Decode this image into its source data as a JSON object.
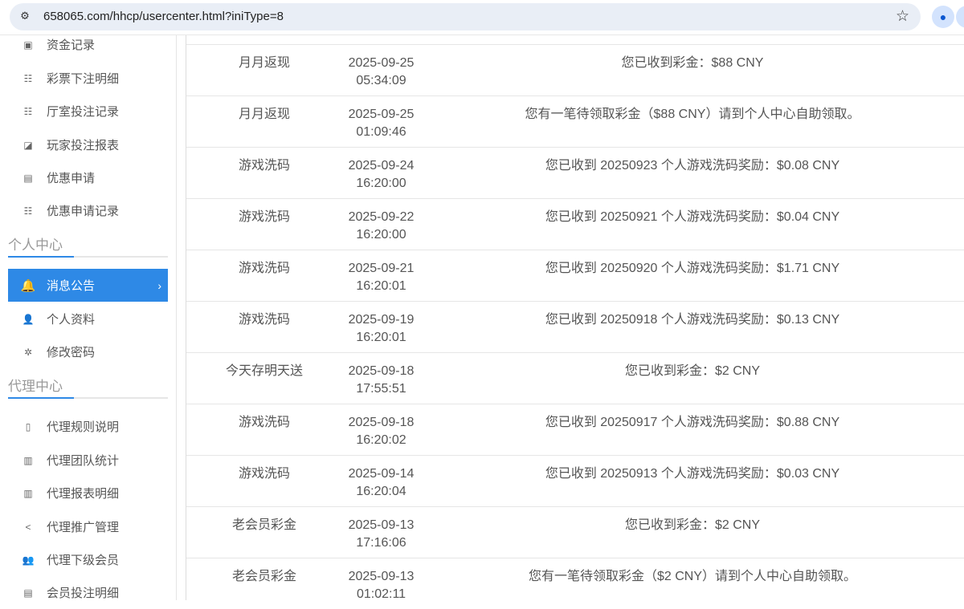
{
  "browser": {
    "url": "658065.com/hhcp/usercenter.html?iniType=8"
  },
  "sidebar": {
    "items_top": [
      {
        "label": "资金记录",
        "icon": "wallet-icon"
      },
      {
        "label": "彩票下注明细",
        "icon": "list-icon"
      },
      {
        "label": "厅室投注记录",
        "icon": "list-icon"
      },
      {
        "label": "玩家投注报表",
        "icon": "chart-icon"
      },
      {
        "label": "优惠申请",
        "icon": "gift-icon"
      },
      {
        "label": "优惠申请记录",
        "icon": "list-icon"
      }
    ],
    "section_personal": "个人中心",
    "items_personal": [
      {
        "label": "消息公告",
        "icon": "bell-icon",
        "active": true
      },
      {
        "label": "个人资料",
        "icon": "user-icon"
      },
      {
        "label": "修改密码",
        "icon": "gear-icon"
      }
    ],
    "section_agent": "代理中心",
    "items_agent": [
      {
        "label": "代理规则说明",
        "icon": "file-icon"
      },
      {
        "label": "代理团队统计",
        "icon": "book-icon"
      },
      {
        "label": "代理报表明细",
        "icon": "book-icon"
      },
      {
        "label": "代理推广管理",
        "icon": "share-icon"
      },
      {
        "label": "代理下级会员",
        "icon": "users-icon"
      },
      {
        "label": "会员投注明细",
        "icon": "document-icon"
      }
    ]
  },
  "messages": [
    {
      "type": "月月返现",
      "date": "2025-09-25",
      "time": "05:34:09",
      "content": "您已收到彩金：$88 CNY"
    },
    {
      "type": "月月返现",
      "date": "2025-09-25",
      "time": "01:09:46",
      "content": "您有一笔待领取彩金（$88 CNY）请到个人中心自助领取。"
    },
    {
      "type": "游戏洗码",
      "date": "2025-09-24",
      "time": "16:20:00",
      "content": "您已收到 20250923 个人游戏洗码奖励：$0.08 CNY"
    },
    {
      "type": "游戏洗码",
      "date": "2025-09-22",
      "time": "16:20:00",
      "content": "您已收到 20250921 个人游戏洗码奖励：$0.04 CNY"
    },
    {
      "type": "游戏洗码",
      "date": "2025-09-21",
      "time": "16:20:01",
      "content": "您已收到 20250920 个人游戏洗码奖励：$1.71 CNY"
    },
    {
      "type": "游戏洗码",
      "date": "2025-09-19",
      "time": "16:20:01",
      "content": "您已收到 20250918 个人游戏洗码奖励：$0.13 CNY"
    },
    {
      "type": "今天存明天送",
      "date": "2025-09-18",
      "time": "17:55:51",
      "content": "您已收到彩金：$2 CNY"
    },
    {
      "type": "游戏洗码",
      "date": "2025-09-18",
      "time": "16:20:02",
      "content": "您已收到 20250917 个人游戏洗码奖励：$0.88 CNY"
    },
    {
      "type": "游戏洗码",
      "date": "2025-09-14",
      "time": "16:20:04",
      "content": "您已收到 20250913 个人游戏洗码奖励：$0.03 CNY"
    },
    {
      "type": "老会员彩金",
      "date": "2025-09-13",
      "time": "17:16:06",
      "content": "您已收到彩金：$2 CNY"
    },
    {
      "type": "老会员彩金",
      "date": "2025-09-13",
      "time": "01:02:11",
      "content": "您有一笔待领取彩金（$2 CNY）请到个人中心自助领取。"
    }
  ]
}
